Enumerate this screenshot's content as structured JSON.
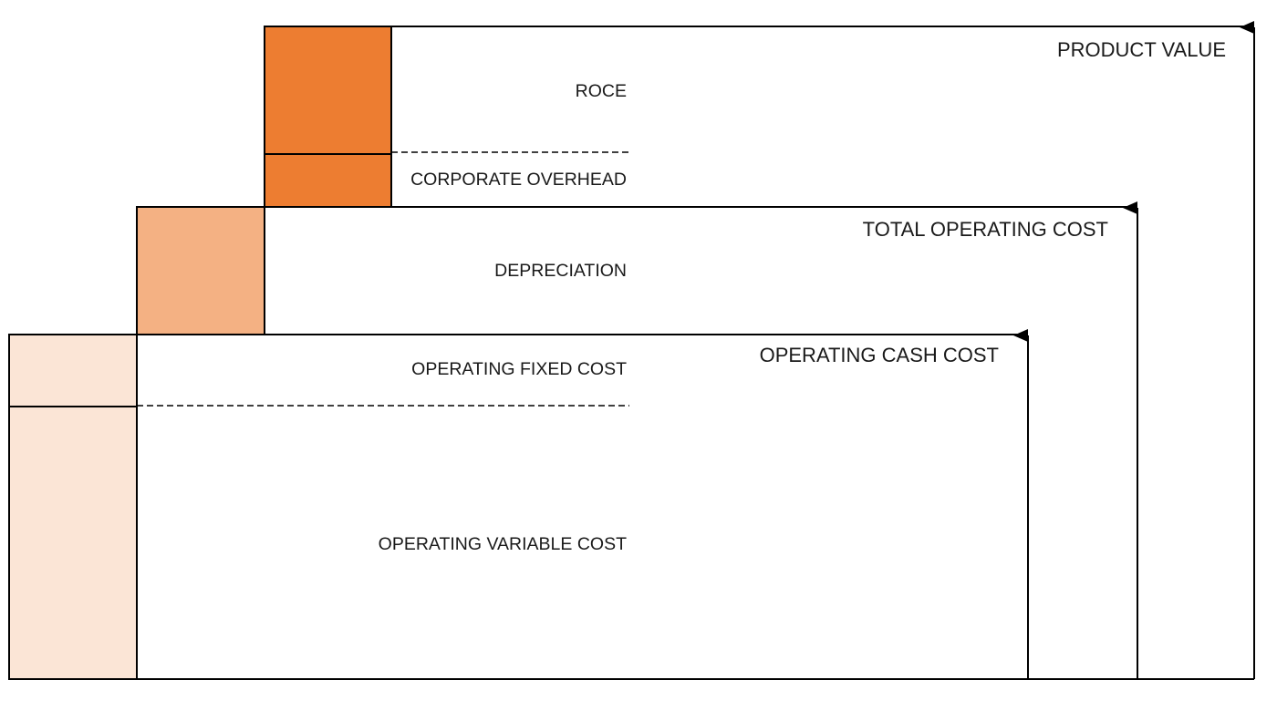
{
  "diagram": {
    "levels": {
      "product_value": "PRODUCT VALUE",
      "total_operating_cost": "TOTAL OPERATING COST",
      "operating_cash_cost": "OPERATING CASH COST"
    },
    "segments": {
      "roce": "ROCE",
      "corporate_overhead": "CORPORATE OVERHEAD",
      "depreciation": "DEPRECIATION",
      "operating_fixed_cost": "OPERATING FIXED COST",
      "operating_variable_cost": "OPERATING VARIABLE COST"
    },
    "colors": {
      "dark_orange": "#ED7D31",
      "mid_orange": "#F4B183",
      "light_orange": "#FBE5D6",
      "line": "#000000"
    }
  }
}
